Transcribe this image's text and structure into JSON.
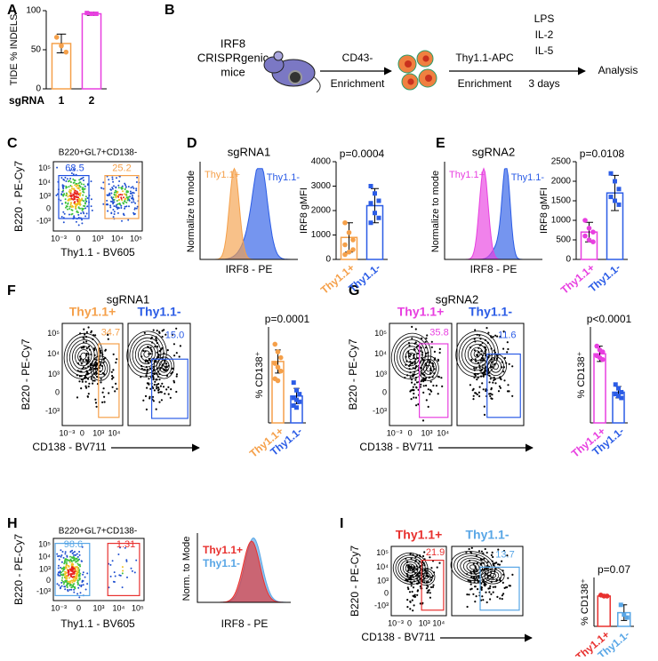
{
  "flow_ticks": {
    "y": [
      "10⁵",
      "10⁴",
      "10³",
      "0",
      "-10³"
    ],
    "x": [
      "10⁻³",
      "0",
      "10³",
      "10⁴",
      "10⁵"
    ]
  },
  "A": {
    "label": "A",
    "x_label": "sgRNA",
    "bar": {
      "y_label": "TIDE % INDELS",
      "ylim": [
        0,
        100
      ],
      "yticks": [
        0,
        50,
        100
      ],
      "categories": [
        "1",
        "2"
      ],
      "colors": [
        "#f5a04a",
        "#e83fe0"
      ],
      "values": [
        58,
        96
      ],
      "errors": [
        12,
        2
      ],
      "points": [
        [
          66,
          55,
          47
        ],
        [
          97,
          96,
          96
        ]
      ]
    }
  },
  "B": {
    "label": "B",
    "mouse": [
      "IRF8",
      "CRISPRgenic",
      "mice"
    ],
    "step1": [
      "CD43-",
      "Enrichment"
    ],
    "step2": [
      "Thy1.1-APC",
      "Enrichment"
    ],
    "culture": [
      "LPS",
      "IL-2",
      "IL-5"
    ],
    "duration": "3 days",
    "end": "Analysis"
  },
  "C": {
    "label": "C",
    "title": "B220+GL7+CD138-",
    "y_label": "B220 - PE-Cy7",
    "x_label": "Thy1.1 - BV605",
    "gates": [
      "68.5",
      "25.2"
    ],
    "gate_colors": [
      "#1f4fe0",
      "#f5a04a"
    ]
  },
  "D": {
    "label": "D",
    "title": "sgRNA1",
    "hist_y_label": "Normalize to mode",
    "hist_x_label": "IRF8 - PE",
    "legend": [
      "Thy1.1+",
      "Thy1.1-"
    ],
    "bar": {
      "y_label": "IRF8 gMFI",
      "p_label": "p=0.0004",
      "ylim": [
        0,
        4000
      ],
      "yticks": [
        0,
        1000,
        2000,
        3000,
        4000
      ],
      "categories": [
        "Thy1.1+",
        "Thy1.1-"
      ],
      "colors": [
        "#f5a04a",
        "#2b5ce6"
      ],
      "values": [
        900,
        2200
      ],
      "errors": [
        600,
        700
      ],
      "points": [
        [
          1500,
          1100,
          800,
          600,
          300,
          400,
          200
        ],
        [
          3000,
          2700,
          2400,
          2300,
          1900,
          1700,
          1500
        ]
      ]
    }
  },
  "E": {
    "label": "E",
    "title": "sgRNA2",
    "hist_y_label": "Normalize to mode",
    "hist_x_label": "IRF8 - PE",
    "legend": [
      "Thy1.1+",
      "Thy1.1-"
    ],
    "bar": {
      "y_label": "IRF8 gMFI",
      "p_label": "p=0.0108",
      "ylim": [
        0,
        2500
      ],
      "yticks": [
        0,
        500,
        1000,
        1500,
        2000,
        2500
      ],
      "categories": [
        "Thy1.1+",
        "Thy1.1-"
      ],
      "colors": [
        "#e83fe0",
        "#2b5ce6"
      ],
      "values": [
        700,
        1700
      ],
      "errors": [
        250,
        450
      ],
      "points": [
        [
          1000,
          800,
          700,
          600,
          500,
          450
        ],
        [
          2200,
          2000,
          1800,
          1600,
          1500,
          1400
        ]
      ]
    }
  },
  "F": {
    "label": "F",
    "title": "sgRNA1",
    "groups": [
      "Thy1.1+",
      "Thy1.1-"
    ],
    "gates": [
      "34.7",
      "15.0"
    ],
    "y_label": "B220 - PE-Cy7",
    "x_label": "CD138 - BV711",
    "bar": {
      "y_label": "% CD138⁺",
      "p_label": "p=0.0001",
      "ylim": [
        0,
        50
      ],
      "categories": [
        "Thy1.1+",
        "Thy1.1-"
      ],
      "colors": [
        "#f5a04a",
        "#2b5ce6"
      ],
      "values": [
        32,
        14
      ],
      "errors": [
        6,
        4
      ],
      "points": [
        [
          41,
          37,
          34,
          31,
          29,
          27,
          23,
          22
        ],
        [
          21,
          17,
          15,
          13,
          12,
          11,
          9,
          8
        ]
      ]
    }
  },
  "G": {
    "label": "G",
    "title": "sgRNA2",
    "groups": [
      "Thy1.1+",
      "Thy1.1-"
    ],
    "gates": [
      "35.8",
      "11.6"
    ],
    "y_label": "B220 - PE-Cy7",
    "x_label": "CD138 - BV711",
    "bar": {
      "y_label": "% CD138⁺",
      "p_label": "p<0.0001",
      "ylim": [
        0,
        50
      ],
      "categories": [
        "Thy1.1+",
        "Thy1.1-"
      ],
      "colors": [
        "#e83fe0",
        "#2b5ce6"
      ],
      "values": [
        36,
        16
      ],
      "errors": [
        4,
        3
      ],
      "points": [
        [
          40,
          38,
          37,
          35,
          34,
          33
        ],
        [
          20,
          18,
          16,
          15,
          14,
          13
        ]
      ]
    }
  },
  "H": {
    "label": "H",
    "title": "B220+GL7+CD138-",
    "y_label": "B220 - PE-Cy7",
    "x_label": "Thy1.1 - BV605",
    "gates": [
      "98.6",
      "1.31"
    ],
    "gate_colors": [
      "#58a6e6",
      "#e8312f"
    ],
    "hist_y_label": "Norm. to Mode",
    "hist_x_label": "IRF8 - PE",
    "legend": [
      "Thy1.1+",
      "Thy1.1-"
    ],
    "legend_colors": [
      "#e8312f",
      "#58a6e6"
    ]
  },
  "I": {
    "label": "I",
    "groups": [
      "Thy1.1+",
      "Thy1.1-"
    ],
    "gates": [
      "21.9",
      "13.7"
    ],
    "y_label": "B220 - PE-Cy7",
    "x_label": "CD138 - BV711",
    "bar": {
      "y_label": "% CD138⁺",
      "p_label": "p=0.07",
      "ylim": [
        0,
        50
      ],
      "categories": [
        "Thy1.1+",
        "Thy1.1-"
      ],
      "colors": [
        "#e8312f",
        "#58a6e6"
      ],
      "values": [
        31,
        14
      ],
      "errors": [
        1,
        8
      ],
      "points": [
        [
          32,
          31,
          31
        ],
        [
          22,
          12,
          9
        ]
      ]
    }
  }
}
